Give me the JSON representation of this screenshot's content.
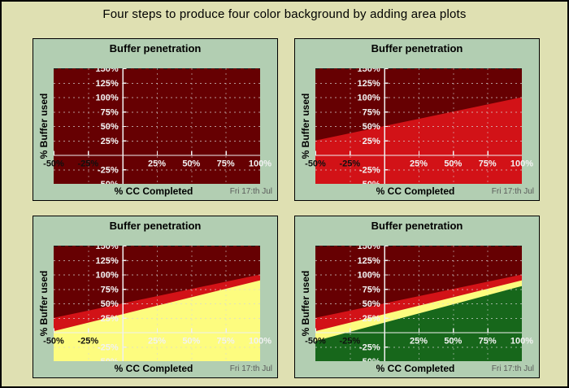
{
  "page": {
    "title": "Four steps to produce four color background by adding area plots"
  },
  "plot": {
    "title": "Buffer penetration",
    "xlabel": "% CC Completed",
    "ylabel": "% Buffer used",
    "timestamp": "Fri 17:th Jul"
  },
  "colors": {
    "page_background": "#dfe0b2",
    "panel_background": "#b2ceb2",
    "dark_red": "#660002",
    "red": "#d21217",
    "yellow": "#fdfc7f",
    "green": "#17671b",
    "grid": "#d8d8d8",
    "grid_top_edge": "#151515",
    "axis": "#f0f0f0",
    "tick_label_light": "#f2f2f2",
    "tick_label_dark": "#101010",
    "timestamp_text": "#5a5a5a"
  },
  "chart_data": {
    "type": "area",
    "title": "Buffer penetration",
    "xlabel": "% CC Completed",
    "ylabel": "% Buffer used",
    "annotation": "Fri 17:th Jul",
    "xlim": [
      -50,
      100
    ],
    "ylim": [
      -50,
      150
    ],
    "grid": true,
    "x_ticks": [
      {
        "value": -50,
        "label": "-50%"
      },
      {
        "value": -25,
        "label": "-25%"
      },
      {
        "value": 25,
        "label": "25%"
      },
      {
        "value": 50,
        "label": "50%"
      },
      {
        "value": 75,
        "label": "75%"
      },
      {
        "value": 100,
        "label": "100%"
      }
    ],
    "y_ticks": [
      {
        "value": 150,
        "label": "150%"
      },
      {
        "value": 125,
        "label": "125%"
      },
      {
        "value": 100,
        "label": "100%"
      },
      {
        "value": 75,
        "label": "75%"
      },
      {
        "value": 50,
        "label": "50%"
      },
      {
        "value": 25,
        "label": "25%"
      },
      {
        "value": -25,
        "label": "-25%"
      },
      {
        "value": -50,
        "label": "-50%"
      }
    ],
    "panels": [
      {
        "step": 1,
        "areas": [
          {
            "name": "dark-red-zone",
            "color_key": "dark_red",
            "type": "full"
          }
        ]
      },
      {
        "step": 2,
        "areas": [
          {
            "name": "dark-red-zone",
            "color_key": "dark_red",
            "type": "full"
          },
          {
            "name": "red-zone",
            "color_key": "red",
            "type": "below-line",
            "line": [
              [
                -50,
                25
              ],
              [
                100,
                100
              ]
            ]
          }
        ]
      },
      {
        "step": 3,
        "areas": [
          {
            "name": "dark-red-zone",
            "color_key": "dark_red",
            "type": "full"
          },
          {
            "name": "red-zone",
            "color_key": "red",
            "type": "below-line",
            "line": [
              [
                -50,
                25
              ],
              [
                100,
                100
              ]
            ]
          },
          {
            "name": "yellow-zone",
            "color_key": "yellow",
            "type": "below-line",
            "line": [
              [
                -50,
                2
              ],
              [
                100,
                90
              ]
            ]
          }
        ]
      },
      {
        "step": 4,
        "areas": [
          {
            "name": "dark-red-zone",
            "color_key": "dark_red",
            "type": "full"
          },
          {
            "name": "red-zone",
            "color_key": "red",
            "type": "below-line",
            "line": [
              [
                -50,
                25
              ],
              [
                100,
                100
              ]
            ]
          },
          {
            "name": "yellow-zone",
            "color_key": "yellow",
            "type": "below-line",
            "line": [
              [
                -50,
                2
              ],
              [
                100,
                90
              ]
            ]
          },
          {
            "name": "green-zone",
            "color_key": "green",
            "type": "below-line",
            "line": [
              [
                -50,
                -15
              ],
              [
                100,
                80
              ]
            ]
          }
        ]
      }
    ]
  }
}
